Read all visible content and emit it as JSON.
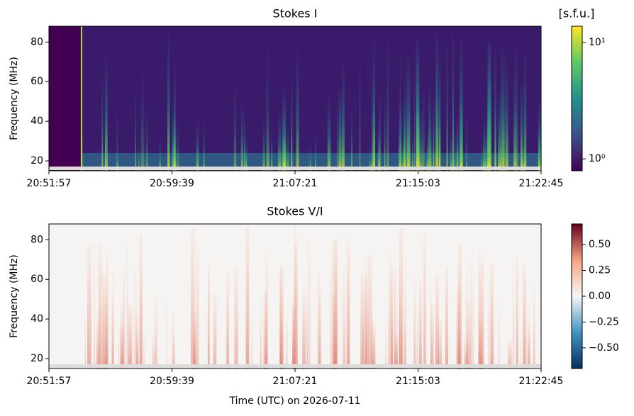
{
  "chart_data": [
    {
      "type": "spectrogram",
      "title": "Stokes I",
      "ylabel": "Frequency (MHz)",
      "xlim": [
        "20:51:57",
        "21:22:45"
      ],
      "xticks": [
        "20:51:57",
        "20:59:39",
        "21:07:21",
        "21:15:03",
        "21:22:45"
      ],
      "ylim": [
        15,
        88
      ],
      "yticks": [
        20,
        40,
        60,
        80
      ],
      "colorbar": {
        "label": "[s.f.u.]",
        "colormap": "viridis",
        "scale": "log",
        "lim": [
          0.79,
          13.8
        ],
        "ticks": [
          {
            "value": 1,
            "label": "10⁰"
          },
          {
            "value": 10,
            "label": "10¹"
          }
        ]
      }
    },
    {
      "type": "spectrogram",
      "title": "Stokes V/I",
      "ylabel": "Frequency (MHz)",
      "xlabel": "Time (UTC) on 2026-07-11",
      "xlim": [
        "20:51:57",
        "21:22:45"
      ],
      "xticks": [
        "20:51:57",
        "20:59:39",
        "21:07:21",
        "21:15:03",
        "21:22:45"
      ],
      "ylim": [
        15,
        88
      ],
      "yticks": [
        20,
        40,
        60,
        80
      ],
      "colorbar": {
        "colormap": "RdBu_r",
        "scale": "linear",
        "lim": [
          -0.7,
          0.7
        ],
        "ticks": [
          {
            "value": -0.5,
            "label": "−0.50"
          },
          {
            "value": -0.25,
            "label": "−0.25"
          },
          {
            "value": 0,
            "label": "0.00"
          },
          {
            "value": 0.25,
            "label": "0.25"
          },
          {
            "value": 0.5,
            "label": "0.50"
          }
        ]
      }
    }
  ]
}
